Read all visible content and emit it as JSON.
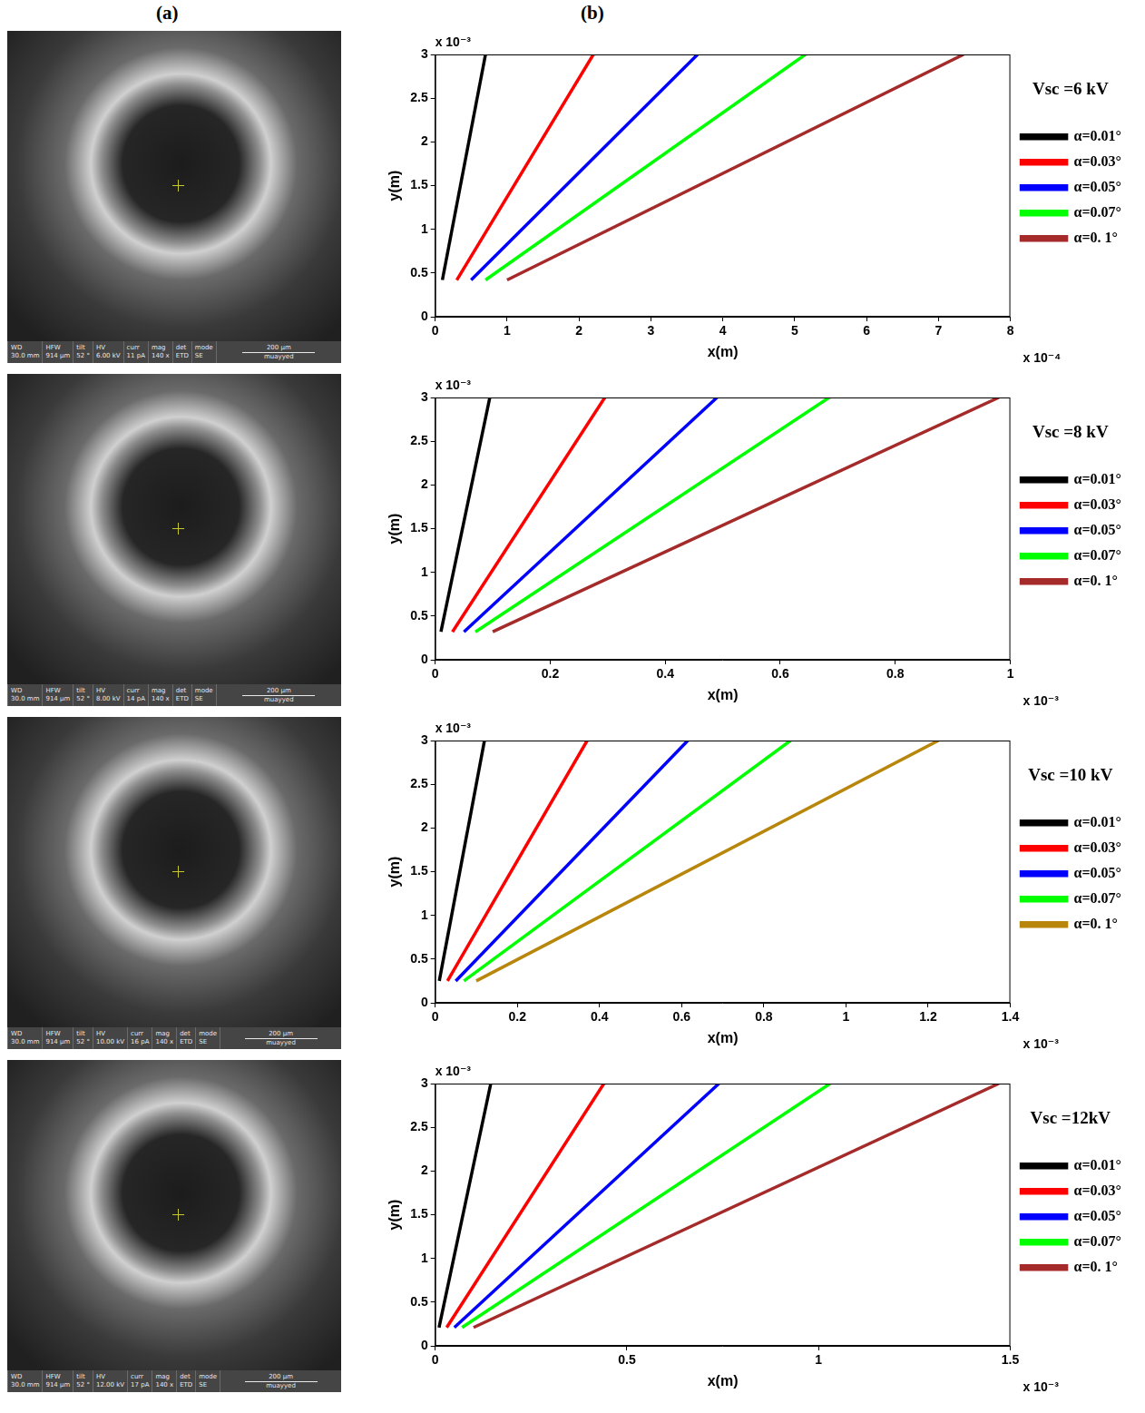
{
  "panel_labels": [
    "(a)",
    "(b)"
  ],
  "images": [
    {
      "info": [
        {
          "label": "WD",
          "value": "30.0 mm"
        },
        {
          "label": "HFW",
          "value": "914 µm"
        },
        {
          "label": "tilt",
          "value": "52 °"
        },
        {
          "label": "HV",
          "value": "6.00 kV"
        },
        {
          "label": "curr",
          "value": "11 pA"
        },
        {
          "label": "mag",
          "value": "140 x"
        },
        {
          "label": "det",
          "value": "ETD"
        },
        {
          "label": "mode",
          "value": "SE"
        }
      ],
      "scale_bar": "200 µm",
      "user": "muayyed"
    },
    {
      "info": [
        {
          "label": "WD",
          "value": "30.0 mm"
        },
        {
          "label": "HFW",
          "value": "914 µm"
        },
        {
          "label": "tilt",
          "value": "52 °"
        },
        {
          "label": "HV",
          "value": "8.00 kV"
        },
        {
          "label": "curr",
          "value": "14 pA"
        },
        {
          "label": "mag",
          "value": "140 x"
        },
        {
          "label": "det",
          "value": "ETD"
        },
        {
          "label": "mode",
          "value": "SE"
        }
      ],
      "scale_bar": "200 µm",
      "user": "muayyed"
    },
    {
      "info": [
        {
          "label": "WD",
          "value": "30.0 mm"
        },
        {
          "label": "HFW",
          "value": "914 µm"
        },
        {
          "label": "tilt",
          "value": "52 °"
        },
        {
          "label": "HV",
          "value": "10.00 kV"
        },
        {
          "label": "curr",
          "value": "16 pA"
        },
        {
          "label": "mag",
          "value": "140 x"
        },
        {
          "label": "det",
          "value": "ETD"
        },
        {
          "label": "mode",
          "value": "SE"
        }
      ],
      "scale_bar": "200 µm",
      "user": "muayyed"
    },
    {
      "info": [
        {
          "label": "WD",
          "value": "30.0 mm"
        },
        {
          "label": "HFW",
          "value": "914 µm"
        },
        {
          "label": "tilt",
          "value": "52 °"
        },
        {
          "label": "HV",
          "value": "12.00 kV"
        },
        {
          "label": "curr",
          "value": "17 pA"
        },
        {
          "label": "mag",
          "value": "140 x"
        },
        {
          "label": "det",
          "value": "ETD"
        },
        {
          "label": "mode",
          "value": "SE"
        }
      ],
      "scale_bar": "200 µm",
      "user": "muayyed"
    }
  ],
  "chart_data": [
    {
      "type": "line",
      "legend_title": "Vsc =6 kV",
      "x_label": "x(m)",
      "y_label": "y(m)",
      "x_multiplier": "x 10⁻⁴",
      "y_multiplier": "x 10⁻³",
      "xlim": [
        0,
        8
      ],
      "xticks": [
        0,
        1,
        2,
        3,
        4,
        5,
        6,
        7,
        8
      ],
      "ylim": [
        0,
        3
      ],
      "yticks": [
        0,
        0.5,
        1,
        1.5,
        2,
        2.5,
        3
      ],
      "grid": false,
      "legend": "right",
      "series": [
        {
          "name": "α=0.01°",
          "color": "#000000",
          "x": [
            0.1,
            0.7
          ],
          "values": [
            0.42,
            3
          ]
        },
        {
          "name": "α=0.03°",
          "color": "#ff0000",
          "x": [
            0.3,
            2.2
          ],
          "values": [
            0.42,
            3
          ]
        },
        {
          "name": "α=0.05°",
          "color": "#0000ff",
          "x": [
            0.5,
            3.65
          ],
          "values": [
            0.42,
            3
          ]
        },
        {
          "name": "α=0.07°",
          "color": "#00ff00",
          "x": [
            0.7,
            5.15
          ],
          "values": [
            0.42,
            3
          ]
        },
        {
          "name": "α=0. 1°",
          "color": "#a52a2a",
          "x": [
            1.0,
            7.35
          ],
          "values": [
            0.42,
            3
          ]
        }
      ]
    },
    {
      "type": "line",
      "legend_title": "Vsc =8 kV",
      "x_label": "x(m)",
      "y_label": "y(m)",
      "x_multiplier": "x 10⁻³",
      "y_multiplier": "x 10⁻³",
      "xlim": [
        0,
        1
      ],
      "xticks": [
        0,
        0.2,
        0.4,
        0.6,
        0.8,
        1
      ],
      "ylim": [
        0,
        3
      ],
      "yticks": [
        0,
        0.5,
        1,
        1.5,
        2,
        2.5,
        3
      ],
      "grid": false,
      "legend": "right",
      "series": [
        {
          "name": "α=0.01°",
          "color": "#000000",
          "x": [
            0.01,
            0.095
          ],
          "values": [
            0.32,
            3
          ]
        },
        {
          "name": "α=0.03°",
          "color": "#ff0000",
          "x": [
            0.03,
            0.295
          ],
          "values": [
            0.32,
            3
          ]
        },
        {
          "name": "α=0.05°",
          "color": "#0000ff",
          "x": [
            0.05,
            0.49
          ],
          "values": [
            0.32,
            3
          ]
        },
        {
          "name": "α=0.07°",
          "color": "#00ff00",
          "x": [
            0.07,
            0.685
          ],
          "values": [
            0.32,
            3
          ]
        },
        {
          "name": "α=0. 1°",
          "color": "#a52a2a",
          "x": [
            0.1,
            0.98
          ],
          "values": [
            0.32,
            3
          ]
        }
      ]
    },
    {
      "type": "line",
      "legend_title": "Vsc =10 kV",
      "x_label": "x(m)",
      "y_label": "y(m)",
      "x_multiplier": "x 10⁻³",
      "y_multiplier": "x 10⁻³",
      "xlim": [
        0,
        1.4
      ],
      "xticks": [
        0,
        0.2,
        0.4,
        0.6,
        0.8,
        1,
        1.2,
        1.4
      ],
      "ylim": [
        0,
        3
      ],
      "yticks": [
        0,
        0.5,
        1,
        1.5,
        2,
        2.5,
        3
      ],
      "grid": false,
      "legend": "right",
      "series": [
        {
          "name": "α=0.01°",
          "color": "#000000",
          "x": [
            0.01,
            0.12
          ],
          "values": [
            0.25,
            3
          ]
        },
        {
          "name": "α=0.03°",
          "color": "#ff0000",
          "x": [
            0.03,
            0.37
          ],
          "values": [
            0.25,
            3
          ]
        },
        {
          "name": "α=0.05°",
          "color": "#0000ff",
          "x": [
            0.05,
            0.615
          ],
          "values": [
            0.25,
            3
          ]
        },
        {
          "name": "α=0.07°",
          "color": "#00ff00",
          "x": [
            0.07,
            0.865
          ],
          "values": [
            0.25,
            3
          ]
        },
        {
          "name": "α=0. 1°",
          "color": "#b8860b",
          "x": [
            0.1,
            1.225
          ],
          "values": [
            0.25,
            3
          ]
        }
      ]
    },
    {
      "type": "line",
      "legend_title": "Vsc =12kV",
      "x_label": "x(m)",
      "y_label": "y(m)",
      "x_multiplier": "x 10⁻³",
      "y_multiplier": "x 10⁻³",
      "xlim": [
        0,
        1.5
      ],
      "xticks": [
        0,
        0.5,
        1,
        1.5
      ],
      "ylim": [
        0,
        3
      ],
      "yticks": [
        0,
        0.5,
        1,
        1.5,
        2,
        2.5,
        3
      ],
      "grid": false,
      "legend": "right",
      "series": [
        {
          "name": "α=0.01°",
          "color": "#000000",
          "x": [
            0.01,
            0.145
          ],
          "values": [
            0.21,
            3
          ]
        },
        {
          "name": "α=0.03°",
          "color": "#ff0000",
          "x": [
            0.03,
            0.44
          ],
          "values": [
            0.21,
            3
          ]
        },
        {
          "name": "α=0.05°",
          "color": "#0000ff",
          "x": [
            0.05,
            0.74
          ],
          "values": [
            0.21,
            3
          ]
        },
        {
          "name": "α=0.07°",
          "color": "#00ff00",
          "x": [
            0.07,
            1.03
          ],
          "values": [
            0.21,
            3
          ]
        },
        {
          "name": "α=0. 1°",
          "color": "#a52a2a",
          "x": [
            0.1,
            1.47
          ],
          "values": [
            0.21,
            3
          ]
        }
      ]
    }
  ]
}
